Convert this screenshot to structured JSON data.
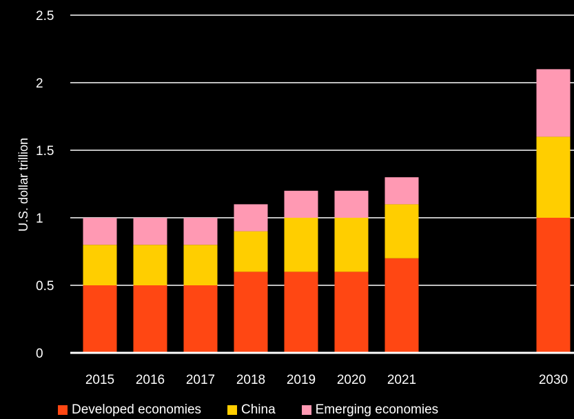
{
  "chart_data": {
    "type": "bar",
    "stacked": true,
    "categories": [
      "2015",
      "2016",
      "2017",
      "2018",
      "2019",
      "2020",
      "2021",
      "2030"
    ],
    "series": [
      {
        "name": "Developed economies",
        "color": "#ff4713",
        "values": [
          0.5,
          0.5,
          0.5,
          0.6,
          0.6,
          0.6,
          0.7,
          1.0
        ]
      },
      {
        "name": "China",
        "color": "#ffce00",
        "values": [
          0.3,
          0.3,
          0.3,
          0.3,
          0.4,
          0.4,
          0.4,
          0.6
        ]
      },
      {
        "name": "Emerging economies",
        "color": "#ff99b3",
        "values": [
          0.2,
          0.2,
          0.2,
          0.2,
          0.2,
          0.2,
          0.2,
          0.5
        ]
      }
    ],
    "ylabel": "U.S. dollar trillion",
    "ylim": [
      0,
      2.5
    ],
    "yticks": [
      "0",
      "0.5",
      "1",
      "1.5",
      "2",
      "2.5"
    ],
    "grid": true,
    "legend_position": "bottom"
  }
}
